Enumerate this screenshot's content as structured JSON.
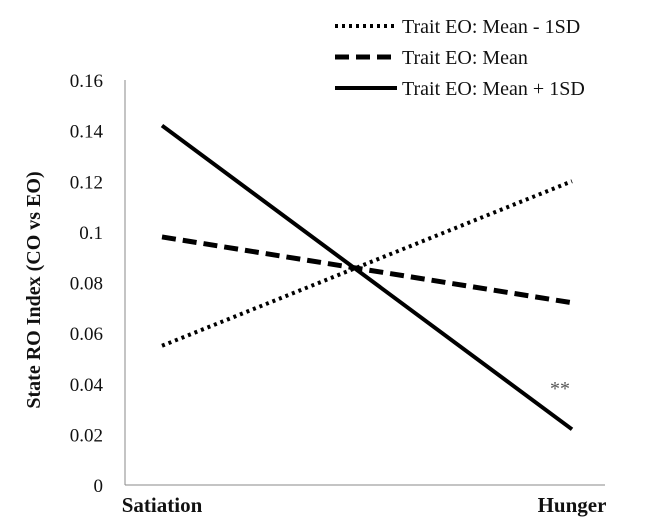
{
  "chart_data": {
    "type": "line",
    "title": "",
    "xlabel": "",
    "ylabel": "State RO Index (CO vs EO)",
    "categories": [
      "Satiation",
      "Hunger"
    ],
    "ylim": [
      0,
      0.16
    ],
    "yticks": [
      {
        "value": 0,
        "label": "0"
      },
      {
        "value": 0.02,
        "label": "0.02"
      },
      {
        "value": 0.04,
        "label": "0.04"
      },
      {
        "value": 0.06,
        "label": "0.06"
      },
      {
        "value": 0.08,
        "label": "0.08"
      },
      {
        "value": 0.1,
        "label": "0.1"
      },
      {
        "value": 0.12,
        "label": "0.12"
      },
      {
        "value": 0.14,
        "label": "0.14"
      },
      {
        "value": 0.16,
        "label": "0.16"
      }
    ],
    "grid": false,
    "legend_position": "top-right",
    "series": [
      {
        "name": "Trait EO: Mean - 1SD",
        "style": "dotted",
        "values": [
          0.055,
          0.12
        ]
      },
      {
        "name": "Trait EO: Mean",
        "style": "dashed",
        "values": [
          0.098,
          0.072
        ]
      },
      {
        "name": "Trait EO: Mean + 1SD",
        "style": "solid",
        "values": [
          0.142,
          0.022
        ]
      }
    ],
    "annotations": [
      {
        "text": "**",
        "x": "Hunger",
        "y": 0.038
      }
    ],
    "line_color": "#000000",
    "axis_color": "#888888"
  }
}
